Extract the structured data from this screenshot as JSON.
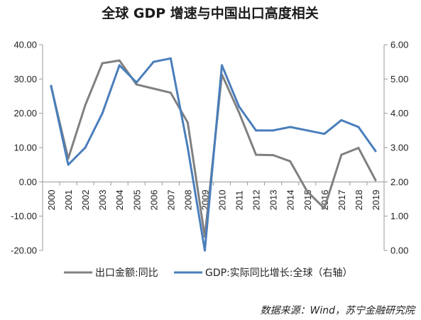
{
  "colors": {
    "export_line": "#808080",
    "gdp_line": "#4A7EBB",
    "axis": "#999999"
  },
  "source_note": "数据来源：Wind，苏宁金融研究院",
  "chart_data": {
    "type": "line",
    "title": "全球 GDP 增速与中国出口高度相关",
    "categories": [
      "2000",
      "2001",
      "2002",
      "2003",
      "2004",
      "2005",
      "2006",
      "2007",
      "2008",
      "2009",
      "2010",
      "2011",
      "2012",
      "2013",
      "2014",
      "2015",
      "2016",
      "2017",
      "2018",
      "2019"
    ],
    "left_axis": {
      "ylim": [
        -20,
        40
      ],
      "ticks": [
        "-20.00",
        "-10.00",
        "0.00",
        "10.00",
        "20.00",
        "30.00",
        "40.00"
      ]
    },
    "right_axis": {
      "ylim": [
        0,
        6
      ],
      "ticks": [
        "0.00",
        "1.00",
        "2.00",
        "3.00",
        "4.00",
        "5.00",
        "6.00"
      ]
    },
    "grid": false,
    "legend_position": "bottom",
    "series": [
      {
        "name": "出口金额:同比",
        "axis": "left",
        "color": "#808080",
        "values": [
          27.8,
          6.8,
          22.4,
          34.6,
          35.4,
          28.4,
          27.2,
          26.0,
          17.3,
          -16.0,
          31.3,
          20.3,
          7.9,
          7.8,
          6.0,
          -2.8,
          -7.7,
          7.9,
          9.9,
          0.5
        ]
      },
      {
        "name": "GDP:实际同比增长:全球（右轴）",
        "axis": "right",
        "color": "#4A7EBB",
        "values": [
          4.8,
          2.5,
          3.0,
          4.0,
          5.4,
          4.9,
          5.5,
          5.6,
          3.0,
          0.0,
          5.4,
          4.2,
          3.5,
          3.5,
          3.6,
          3.5,
          3.4,
          3.8,
          3.6,
          2.9
        ]
      }
    ]
  }
}
